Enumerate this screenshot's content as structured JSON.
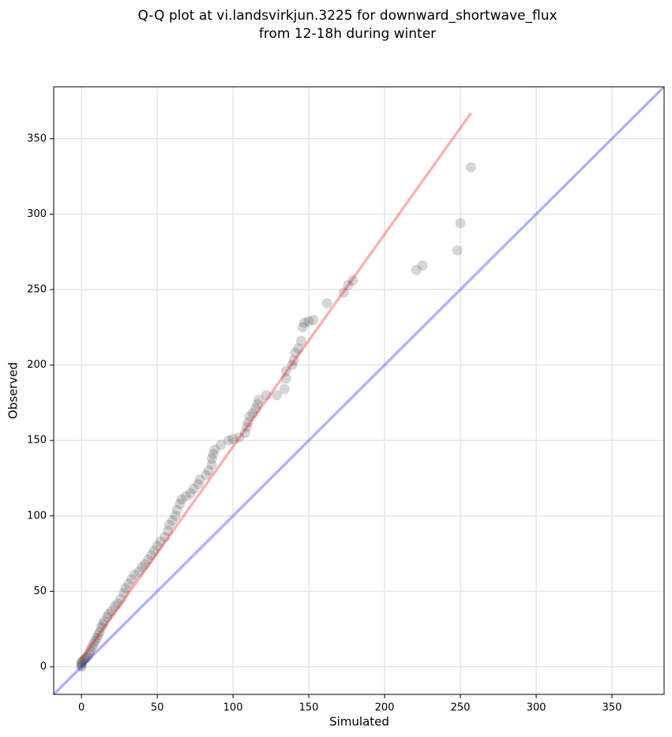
{
  "chart_data": {
    "type": "scatter",
    "title": [
      "Q-Q plot at vi.landsvirkjun.3225 for downward_shortwave_flux",
      "from 12-18h during winter"
    ],
    "x_label": "Simulated",
    "y_label": "Observed",
    "xlim": [
      -18.3,
      384.4
    ],
    "ylim": [
      -18.3,
      384.4
    ],
    "xticks": [
      0,
      50,
      100,
      150,
      200,
      250,
      300,
      350
    ],
    "yticks": [
      0,
      50,
      100,
      150,
      200,
      250,
      300,
      350
    ],
    "grid": true,
    "series": [
      {
        "color": "#333333",
        "x": [
          0,
          0,
          0,
          0,
          1,
          2,
          3,
          4,
          5,
          6,
          7,
          8,
          9,
          10,
          11,
          12,
          13,
          14,
          15,
          17,
          18,
          20,
          22,
          24,
          26,
          28,
          29,
          31,
          33,
          35,
          38,
          40,
          42,
          44,
          46,
          48,
          50,
          52,
          55,
          57,
          58,
          60,
          62,
          63,
          65,
          66,
          69,
          72,
          74,
          77,
          78,
          82,
          84,
          86,
          86,
          87,
          88,
          92,
          97,
          100,
          104,
          108,
          109,
          110,
          111,
          113,
          115,
          116,
          117,
          122,
          129,
          134,
          135,
          135,
          139,
          140,
          141,
          143,
          145,
          146,
          147,
          150,
          153,
          162,
          173,
          176,
          179,
          221,
          225,
          248,
          250,
          257
        ],
        "values": [
          0,
          1,
          2,
          3,
          4,
          5,
          6,
          7,
          9,
          11,
          13,
          15,
          17,
          19,
          21,
          23,
          26,
          28,
          30,
          33,
          35,
          37,
          40,
          42,
          45,
          49,
          52,
          55,
          58,
          61,
          63,
          66,
          68,
          71,
          74,
          77,
          80,
          83,
          86,
          90,
          94,
          97,
          100,
          104,
          108,
          111,
          113,
          115,
          118,
          121,
          124,
          127,
          130,
          134,
          138,
          141,
          144,
          147,
          150,
          151,
          152,
          155,
          159,
          162,
          166,
          168,
          171,
          174,
          177,
          180,
          180,
          184,
          191,
          196,
          200,
          203,
          208,
          211,
          216,
          225,
          228,
          229,
          230,
          241,
          248,
          253,
          256,
          263,
          266,
          276,
          294,
          331
        ]
      }
    ],
    "fit_line": {
      "x": [
        0,
        257
      ],
      "y": [
        5,
        367
      ],
      "color": "#ff0000"
    },
    "identity_line": {
      "color": "#0000ff"
    }
  }
}
